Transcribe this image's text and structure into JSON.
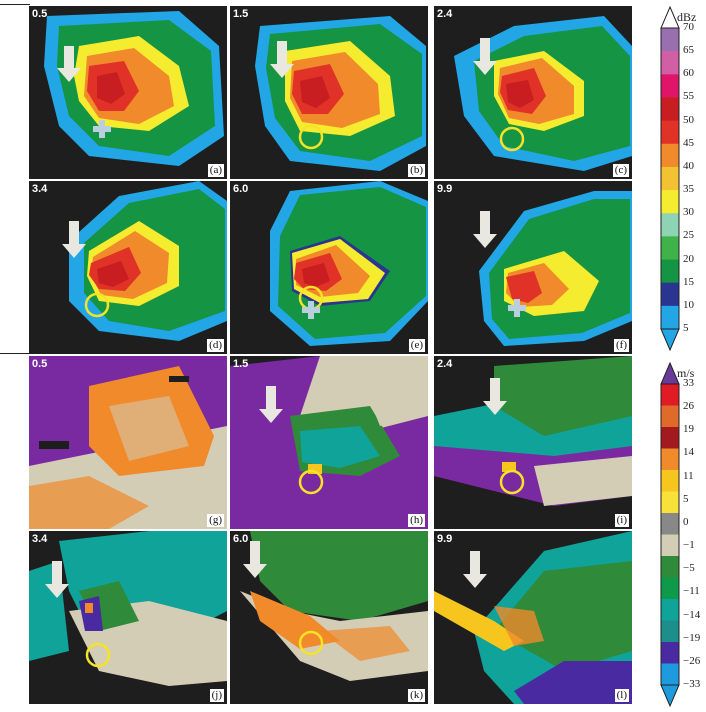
{
  "reflectivity": {
    "unit": "dBz",
    "ticks": [
      "70",
      "65",
      "60",
      "55",
      "50",
      "45",
      "40",
      "35",
      "30",
      "25",
      "20",
      "15",
      "10",
      "5"
    ],
    "colors": [
      "#9a6fb0",
      "#d25fa5",
      "#e0156a",
      "#c81e22",
      "#e03226",
      "#f08a2a",
      "#f2c233",
      "#f6ec2f",
      "#8fd3b5",
      "#3fb24a",
      "#159443",
      "#2a3592",
      "#22a6e6"
    ],
    "panels": [
      {
        "elevation": "0.5",
        "label": "(a)"
      },
      {
        "elevation": "1.5",
        "label": "(b)"
      },
      {
        "elevation": "2.4",
        "label": "(c)"
      },
      {
        "elevation": "3.4",
        "label": "(d)"
      },
      {
        "elevation": "6.0",
        "label": "(e)"
      },
      {
        "elevation": "9.9",
        "label": "(f)"
      }
    ]
  },
  "velocity": {
    "unit": "m/s",
    "ticks": [
      "33",
      "26",
      "19",
      "14",
      "11",
      "5",
      "0",
      "−1",
      "−5",
      "−11",
      "−14",
      "−19",
      "−26",
      "−33"
    ],
    "colors": [
      "#e01b24",
      "#e06a2a",
      "#a21a20",
      "#f08a2a",
      "#f6c61e",
      "#f8e23a",
      "#888888",
      "#d4cdb6",
      "#2f8a3a",
      "#0d9a4a",
      "#0fa39a",
      "#1c8f8a",
      "#4a2aa0",
      "#1e9bde"
    ],
    "panels": [
      {
        "elevation": "0.5",
        "label": "(g)"
      },
      {
        "elevation": "1.5",
        "label": "(h)"
      },
      {
        "elevation": "2.4",
        "label": "(i)"
      },
      {
        "elevation": "3.4",
        "label": "(j)"
      },
      {
        "elevation": "6.0",
        "label": "(k)"
      },
      {
        "elevation": "9.9",
        "label": "(l)"
      }
    ]
  }
}
